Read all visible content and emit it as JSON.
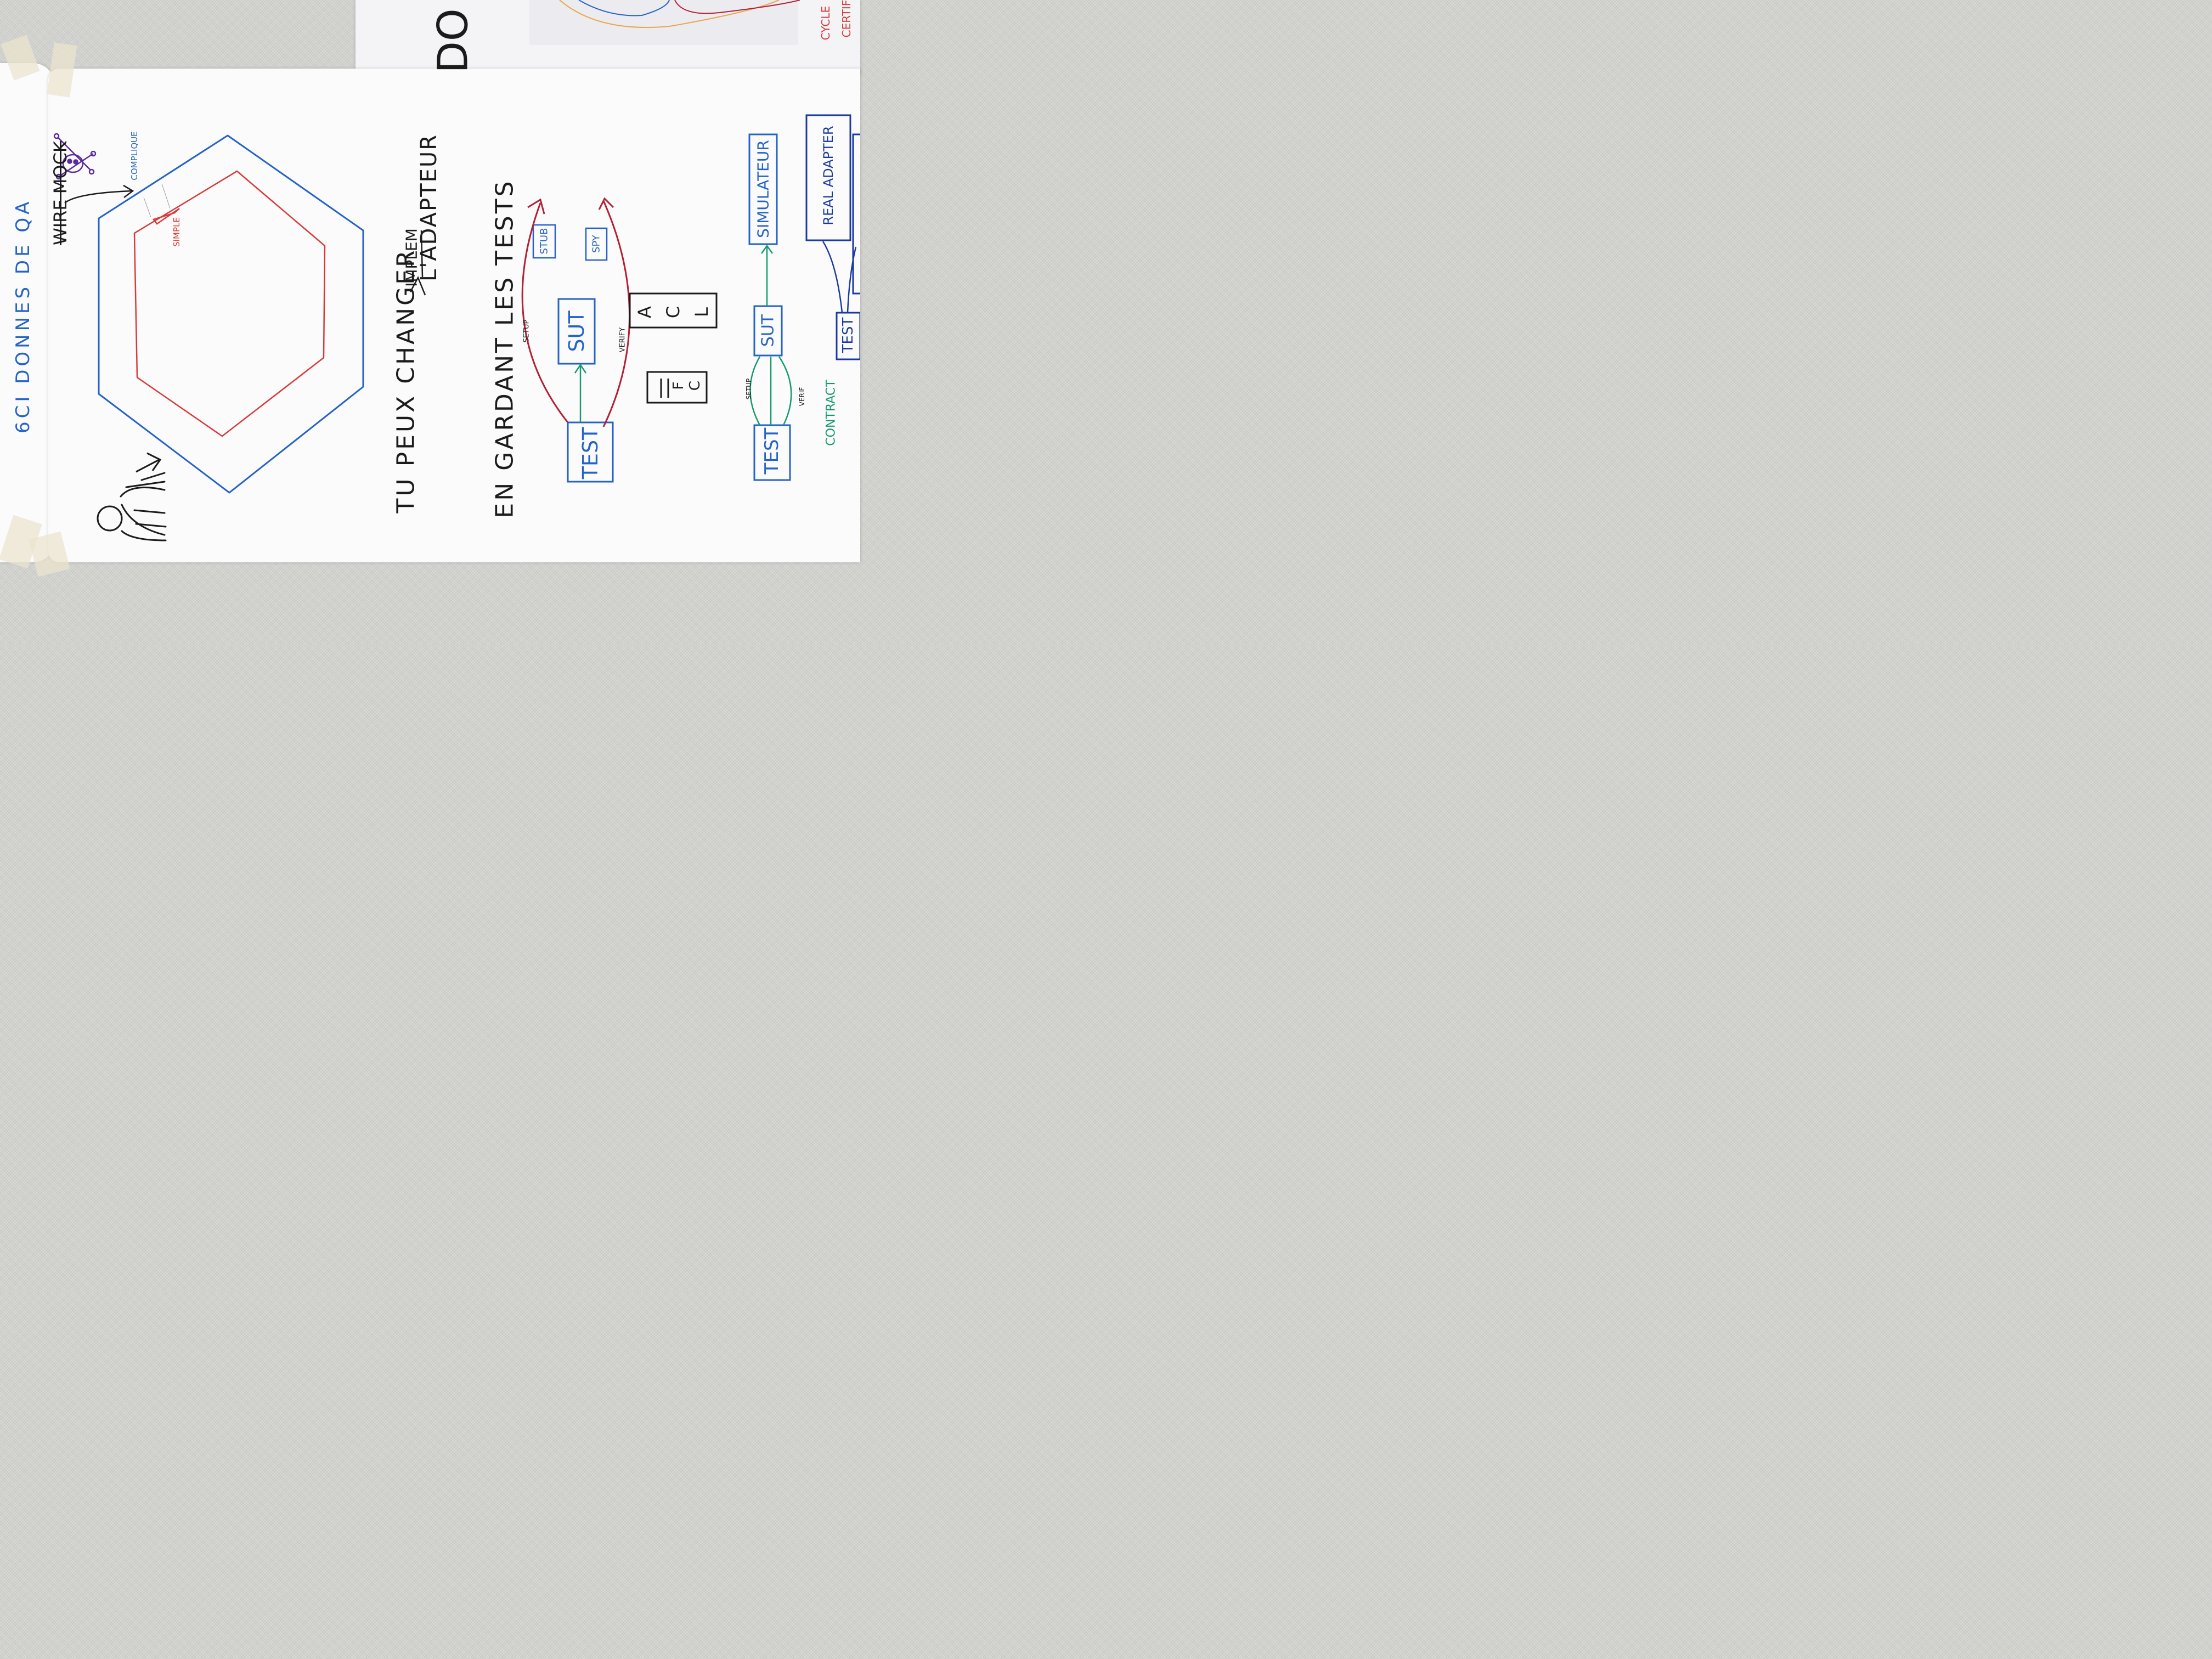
{
  "colors": {
    "black": "#1b1b1b",
    "blue": "#2563c9",
    "red": "#d83a3a",
    "green": "#169a6a",
    "dark_red": "#b51f34",
    "orange": "#e8a64a",
    "wall": "#d6d6d3",
    "paper": "#fbfbfb"
  },
  "left_sheet": {
    "text": "6CI DONNES DE QA"
  },
  "top_sheet": {
    "big_letters": "DO",
    "red_lines": [
      "CYCLE",
      "CERTIF"
    ]
  },
  "hexagon_section": {
    "crossed_label": "WIRE MOCK",
    "blue_label": "COMPLIQUE",
    "red_label": "SIMPLE",
    "user_icon": "stick-user-icon",
    "skull_icon": "skull-crossbones-icon"
  },
  "main_text": {
    "line1": "TU PEUX CHANGER",
    "insert_word": "IMPLEM",
    "line1_end": "L'ADAPTEUR",
    "line2": "EN GARDANT LES TESTS"
  },
  "diagram_top": {
    "test_box": "TEST",
    "sut_box": "SUT",
    "stub_box": "STUB",
    "spy_box": "SPY",
    "setup_label": "SETUP",
    "verify_label": "VERIFY"
  },
  "acronyms": {
    "acl": [
      "A",
      "C",
      "L"
    ],
    "fc": [
      "F",
      "C"
    ]
  },
  "diagram_bottom": {
    "test_box": "TEST",
    "sut_box": "SUT",
    "simulator_box": "SIMULATEUR",
    "setup_label": "SETUP",
    "verif_label": "VERIF",
    "contract_label": "CONTRACT"
  },
  "diagram_right": {
    "test_box": "TEST",
    "adapter_box": "REAL ADAPTER"
  }
}
